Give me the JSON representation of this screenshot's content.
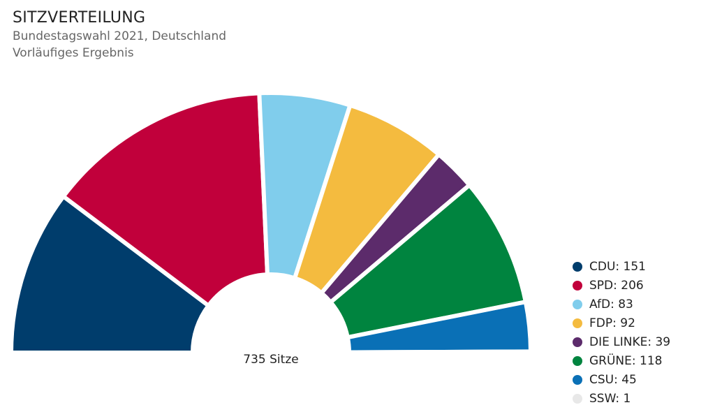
{
  "header": {
    "title": "SITZVERTEILUNG",
    "subtitle1": "Bundestagswahl 2021, Deutschland",
    "subtitle2": "Vorläufiges Ergebnis"
  },
  "chart_data": {
    "type": "pie",
    "variant": "semicircle-donut",
    "title": "SITZVERTEILUNG",
    "subtitle": "Bundestagswahl 2021, Deutschland — Vorläufiges Ergebnis",
    "total_label": "735 Sitze",
    "total": 735,
    "legend_position": "bottom-right",
    "slices": [
      {
        "label": "CDU",
        "value": 151,
        "color": "#003d6c"
      },
      {
        "label": "SPD",
        "value": 206,
        "color": "#c1003b"
      },
      {
        "label": "AfD",
        "value": 83,
        "color": "#80cdec"
      },
      {
        "label": "FDP",
        "value": 92,
        "color": "#f4bb3f"
      },
      {
        "label": "DIE LINKE",
        "value": 39,
        "color": "#5c2b6b"
      },
      {
        "label": "GRÜNE",
        "value": 118,
        "color": "#00843f"
      },
      {
        "label": "CSU",
        "value": 45,
        "color": "#0a70b6"
      },
      {
        "label": "SSW",
        "value": 1,
        "color": "#e8e8e8"
      }
    ]
  }
}
